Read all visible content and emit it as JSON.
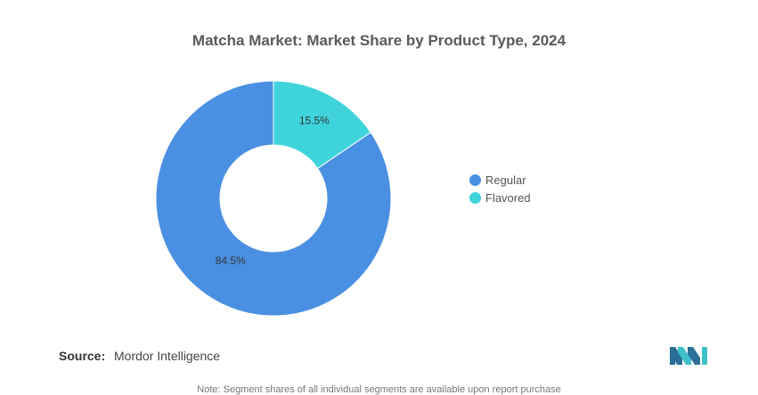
{
  "chart_data": {
    "type": "pie",
    "title": "Matcha Market: Market Share by Product Type, 2024",
    "categories": [
      "Regular",
      "Flavored"
    ],
    "values": [
      84.5,
      15.5
    ],
    "labels": [
      "84.5%",
      "15.5%"
    ],
    "colors": [
      "#4a90e2",
      "#3fd4dc"
    ],
    "donut": true,
    "legend_position": "right"
  },
  "source": {
    "label": "Source:",
    "text": "Mordor Intelligence"
  },
  "footnote": "Note: Segment shares of all individual segments are available upon report purchase",
  "logo_icon": "mordor-intelligence-logo"
}
